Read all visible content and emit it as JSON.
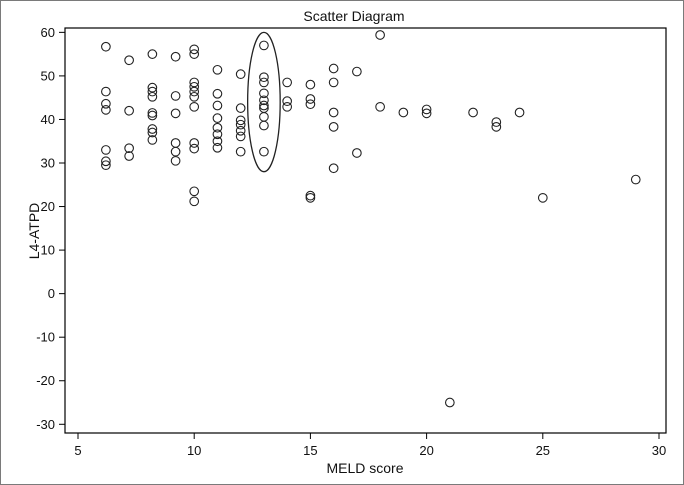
{
  "chart_data": {
    "type": "scatter",
    "title": "Scatter Diagram",
    "xlabel": "MELD score",
    "ylabel": "L4-ATPD",
    "xlim": [
      5,
      30
    ],
    "ylim": [
      -32,
      61
    ],
    "xticks": [
      5,
      10,
      15,
      20,
      25,
      30
    ],
    "yticks": [
      -30,
      -20,
      -10,
      0,
      10,
      20,
      30,
      40,
      50,
      60
    ],
    "x_tick_labels": [
      "5",
      "10",
      "15",
      "20",
      "25",
      "30"
    ],
    "y_tick_labels": [
      "-30",
      "-20",
      "-10",
      "0",
      "10",
      "20",
      "30",
      "40",
      "50",
      "60"
    ],
    "grid": false,
    "marker": "open-circle",
    "colors": {
      "marker_edge": "#222222",
      "axis": "#000000",
      "frame": "#7a7a7a"
    },
    "highlight_ellipse": {
      "x_center": 13,
      "y_center": 44,
      "x_radius": 0.7,
      "y_radius": 16
    },
    "points": [
      {
        "x": 6.2,
        "y": 56.7
      },
      {
        "x": 6.2,
        "y": 46.4
      },
      {
        "x": 6.2,
        "y": 43.6
      },
      {
        "x": 6.2,
        "y": 42.2
      },
      {
        "x": 6.2,
        "y": 33
      },
      {
        "x": 6.2,
        "y": 30.4
      },
      {
        "x": 6.2,
        "y": 29.5
      },
      {
        "x": 7.2,
        "y": 53.6
      },
      {
        "x": 7.2,
        "y": 42
      },
      {
        "x": 7.2,
        "y": 33.4
      },
      {
        "x": 7.2,
        "y": 31.6
      },
      {
        "x": 8.2,
        "y": 55
      },
      {
        "x": 8.2,
        "y": 47.3
      },
      {
        "x": 8.2,
        "y": 46.4
      },
      {
        "x": 8.2,
        "y": 45.2
      },
      {
        "x": 8.2,
        "y": 41.5
      },
      {
        "x": 8.2,
        "y": 40.9
      },
      {
        "x": 8.2,
        "y": 37.8
      },
      {
        "x": 8.2,
        "y": 37
      },
      {
        "x": 8.2,
        "y": 35.3
      },
      {
        "x": 9.2,
        "y": 54.4
      },
      {
        "x": 9.2,
        "y": 45.4
      },
      {
        "x": 9.2,
        "y": 41.4
      },
      {
        "x": 9.2,
        "y": 34.6
      },
      {
        "x": 9.2,
        "y": 32.6
      },
      {
        "x": 9.2,
        "y": 30.5
      },
      {
        "x": 10,
        "y": 56.1
      },
      {
        "x": 10,
        "y": 55
      },
      {
        "x": 10,
        "y": 48.5
      },
      {
        "x": 10,
        "y": 47.5
      },
      {
        "x": 10,
        "y": 46.4
      },
      {
        "x": 10,
        "y": 45.2
      },
      {
        "x": 10,
        "y": 42.9
      },
      {
        "x": 10,
        "y": 34.6
      },
      {
        "x": 10,
        "y": 33.3
      },
      {
        "x": 10,
        "y": 23.5
      },
      {
        "x": 10,
        "y": 21.2
      },
      {
        "x": 11,
        "y": 51.4
      },
      {
        "x": 11,
        "y": 45.9
      },
      {
        "x": 11,
        "y": 43.2
      },
      {
        "x": 11,
        "y": 40.3
      },
      {
        "x": 11,
        "y": 38.1
      },
      {
        "x": 11,
        "y": 36.6
      },
      {
        "x": 11,
        "y": 35
      },
      {
        "x": 11,
        "y": 33.5
      },
      {
        "x": 12,
        "y": 50.4
      },
      {
        "x": 12,
        "y": 42.6
      },
      {
        "x": 12,
        "y": 39.8
      },
      {
        "x": 12,
        "y": 38.8
      },
      {
        "x": 12,
        "y": 37.4
      },
      {
        "x": 12,
        "y": 36.1
      },
      {
        "x": 12,
        "y": 32.6
      },
      {
        "x": 13,
        "y": 57
      },
      {
        "x": 13,
        "y": 49.7
      },
      {
        "x": 13,
        "y": 48.5
      },
      {
        "x": 13,
        "y": 46
      },
      {
        "x": 13,
        "y": 44.4
      },
      {
        "x": 13,
        "y": 43.2
      },
      {
        "x": 13,
        "y": 42.6
      },
      {
        "x": 13,
        "y": 40.6
      },
      {
        "x": 13,
        "y": 38.6
      },
      {
        "x": 13,
        "y": 32.6
      },
      {
        "x": 14,
        "y": 48.5
      },
      {
        "x": 14,
        "y": 44.2
      },
      {
        "x": 14,
        "y": 42.9
      },
      {
        "x": 15,
        "y": 48
      },
      {
        "x": 15,
        "y": 44.7
      },
      {
        "x": 15,
        "y": 43.5
      },
      {
        "x": 15,
        "y": 22.5
      },
      {
        "x": 15,
        "y": 22
      },
      {
        "x": 16,
        "y": 51.7
      },
      {
        "x": 16,
        "y": 48.5
      },
      {
        "x": 16,
        "y": 41.6
      },
      {
        "x": 16,
        "y": 38.3
      },
      {
        "x": 16,
        "y": 28.8
      },
      {
        "x": 17,
        "y": 51
      },
      {
        "x": 17,
        "y": 32.3
      },
      {
        "x": 18,
        "y": 59.4
      },
      {
        "x": 18,
        "y": 42.9
      },
      {
        "x": 19,
        "y": 41.6
      },
      {
        "x": 20,
        "y": 42.3
      },
      {
        "x": 20,
        "y": 41.4
      },
      {
        "x": 21,
        "y": -25
      },
      {
        "x": 22,
        "y": 41.6
      },
      {
        "x": 23,
        "y": 39.4
      },
      {
        "x": 23,
        "y": 38.3
      },
      {
        "x": 24,
        "y": 41.6
      },
      {
        "x": 25,
        "y": 22
      },
      {
        "x": 29,
        "y": 26.2
      }
    ]
  }
}
